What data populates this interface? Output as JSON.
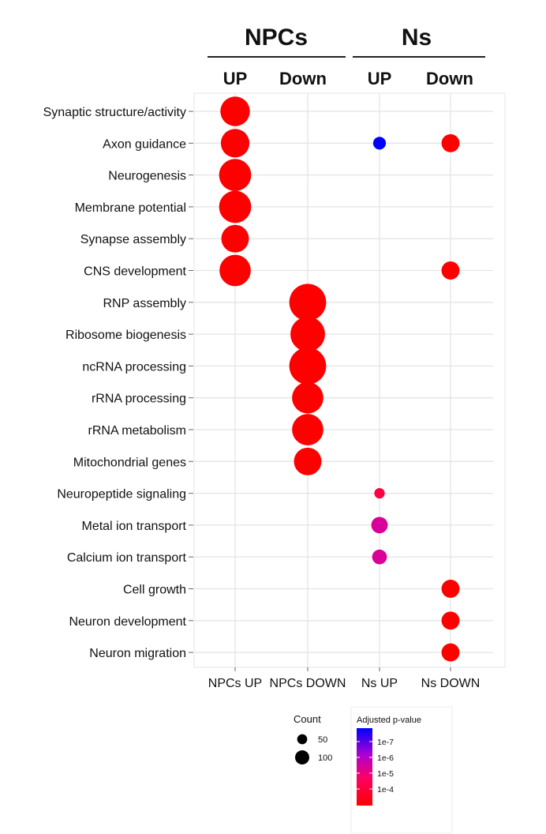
{
  "headers": {
    "group1": "NPCs",
    "group2": "Ns",
    "sub": [
      "UP",
      "Down",
      "UP",
      "Down"
    ]
  },
  "chart_data": {
    "type": "scatter",
    "x_categories": [
      "NPCs UP",
      "NPCs DOWN",
      "Ns UP",
      "Ns DOWN"
    ],
    "y_categories": [
      "Synaptic structure/activity",
      "Axon guidance",
      "Neurogenesis",
      "Membrane potential",
      "Synapse assembly",
      "CNS development",
      "RNP assembly",
      "Ribosome biogenesis",
      "ncRNA processing",
      "rRNA processing",
      "rRNA metabolism",
      "Mitochondrial genes",
      "Neuropeptide signaling",
      "Metal ion transport",
      "Calcium ion transport",
      "Cell growth",
      "Neuron development",
      "Neuron migration"
    ],
    "points": [
      {
        "x": "NPCs UP",
        "y": "Synaptic structure/activity",
        "count": 80,
        "padj": 0.0001
      },
      {
        "x": "NPCs UP",
        "y": "Axon guidance",
        "count": 75,
        "padj": 0.0001
      },
      {
        "x": "NPCs UP",
        "y": "Neurogenesis",
        "count": 95,
        "padj": 0.0001
      },
      {
        "x": "NPCs UP",
        "y": "Membrane potential",
        "count": 95,
        "padj": 0.0001
      },
      {
        "x": "NPCs UP",
        "y": "Synapse assembly",
        "count": 70,
        "padj": 0.0001
      },
      {
        "x": "NPCs UP",
        "y": "CNS development",
        "count": 90,
        "padj": 0.0001
      },
      {
        "x": "NPCs DOWN",
        "y": "RNP assembly",
        "count": 125,
        "padj": 0.0001
      },
      {
        "x": "NPCs DOWN",
        "y": "Ribosome biogenesis",
        "count": 110,
        "padj": 0.0001
      },
      {
        "x": "NPCs DOWN",
        "y": "ncRNA processing",
        "count": 125,
        "padj": 0.0001
      },
      {
        "x": "NPCs DOWN",
        "y": "rRNA processing",
        "count": 90,
        "padj": 0.0001
      },
      {
        "x": "NPCs DOWN",
        "y": "rRNA metabolism",
        "count": 90,
        "padj": 0.0001
      },
      {
        "x": "NPCs DOWN",
        "y": "Mitochondrial genes",
        "count": 70,
        "padj": 0.0001
      },
      {
        "x": "Ns UP",
        "y": "Axon guidance",
        "count": 15,
        "padj": 1e-08
      },
      {
        "x": "Ns UP",
        "y": "Neuropeptide signaling",
        "count": 10,
        "padj": 1e-05
      },
      {
        "x": "Ns UP",
        "y": "Metal ion transport",
        "count": 25,
        "padj": 1e-06
      },
      {
        "x": "Ns UP",
        "y": "Calcium ion transport",
        "count": 20,
        "padj": 1e-06
      },
      {
        "x": "Ns DOWN",
        "y": "Axon guidance",
        "count": 30,
        "padj": 0.0001
      },
      {
        "x": "Ns DOWN",
        "y": "CNS development",
        "count": 30,
        "padj": 0.0001
      },
      {
        "x": "Ns DOWN",
        "y": "Cell growth",
        "count": 30,
        "padj": 0.0001
      },
      {
        "x": "Ns DOWN",
        "y": "Neuron development",
        "count": 30,
        "padj": 0.0001
      },
      {
        "x": "Ns DOWN",
        "y": "Neuron migration",
        "count": 30,
        "padj": 0.0001
      }
    ],
    "size_legend": {
      "title": "Count",
      "entries": [
        50,
        100
      ],
      "labels": [
        "50",
        "100"
      ]
    },
    "color_legend": {
      "title": "Adjusted p-value",
      "ticks": [
        1e-07,
        1e-06,
        1e-05,
        0.0001
      ],
      "tick_labels": [
        "1e-7",
        "1e-6",
        "1e-5",
        "1e-4"
      ],
      "low_color": "#0000ff",
      "high_color": "#ff0000"
    },
    "grid": true
  }
}
